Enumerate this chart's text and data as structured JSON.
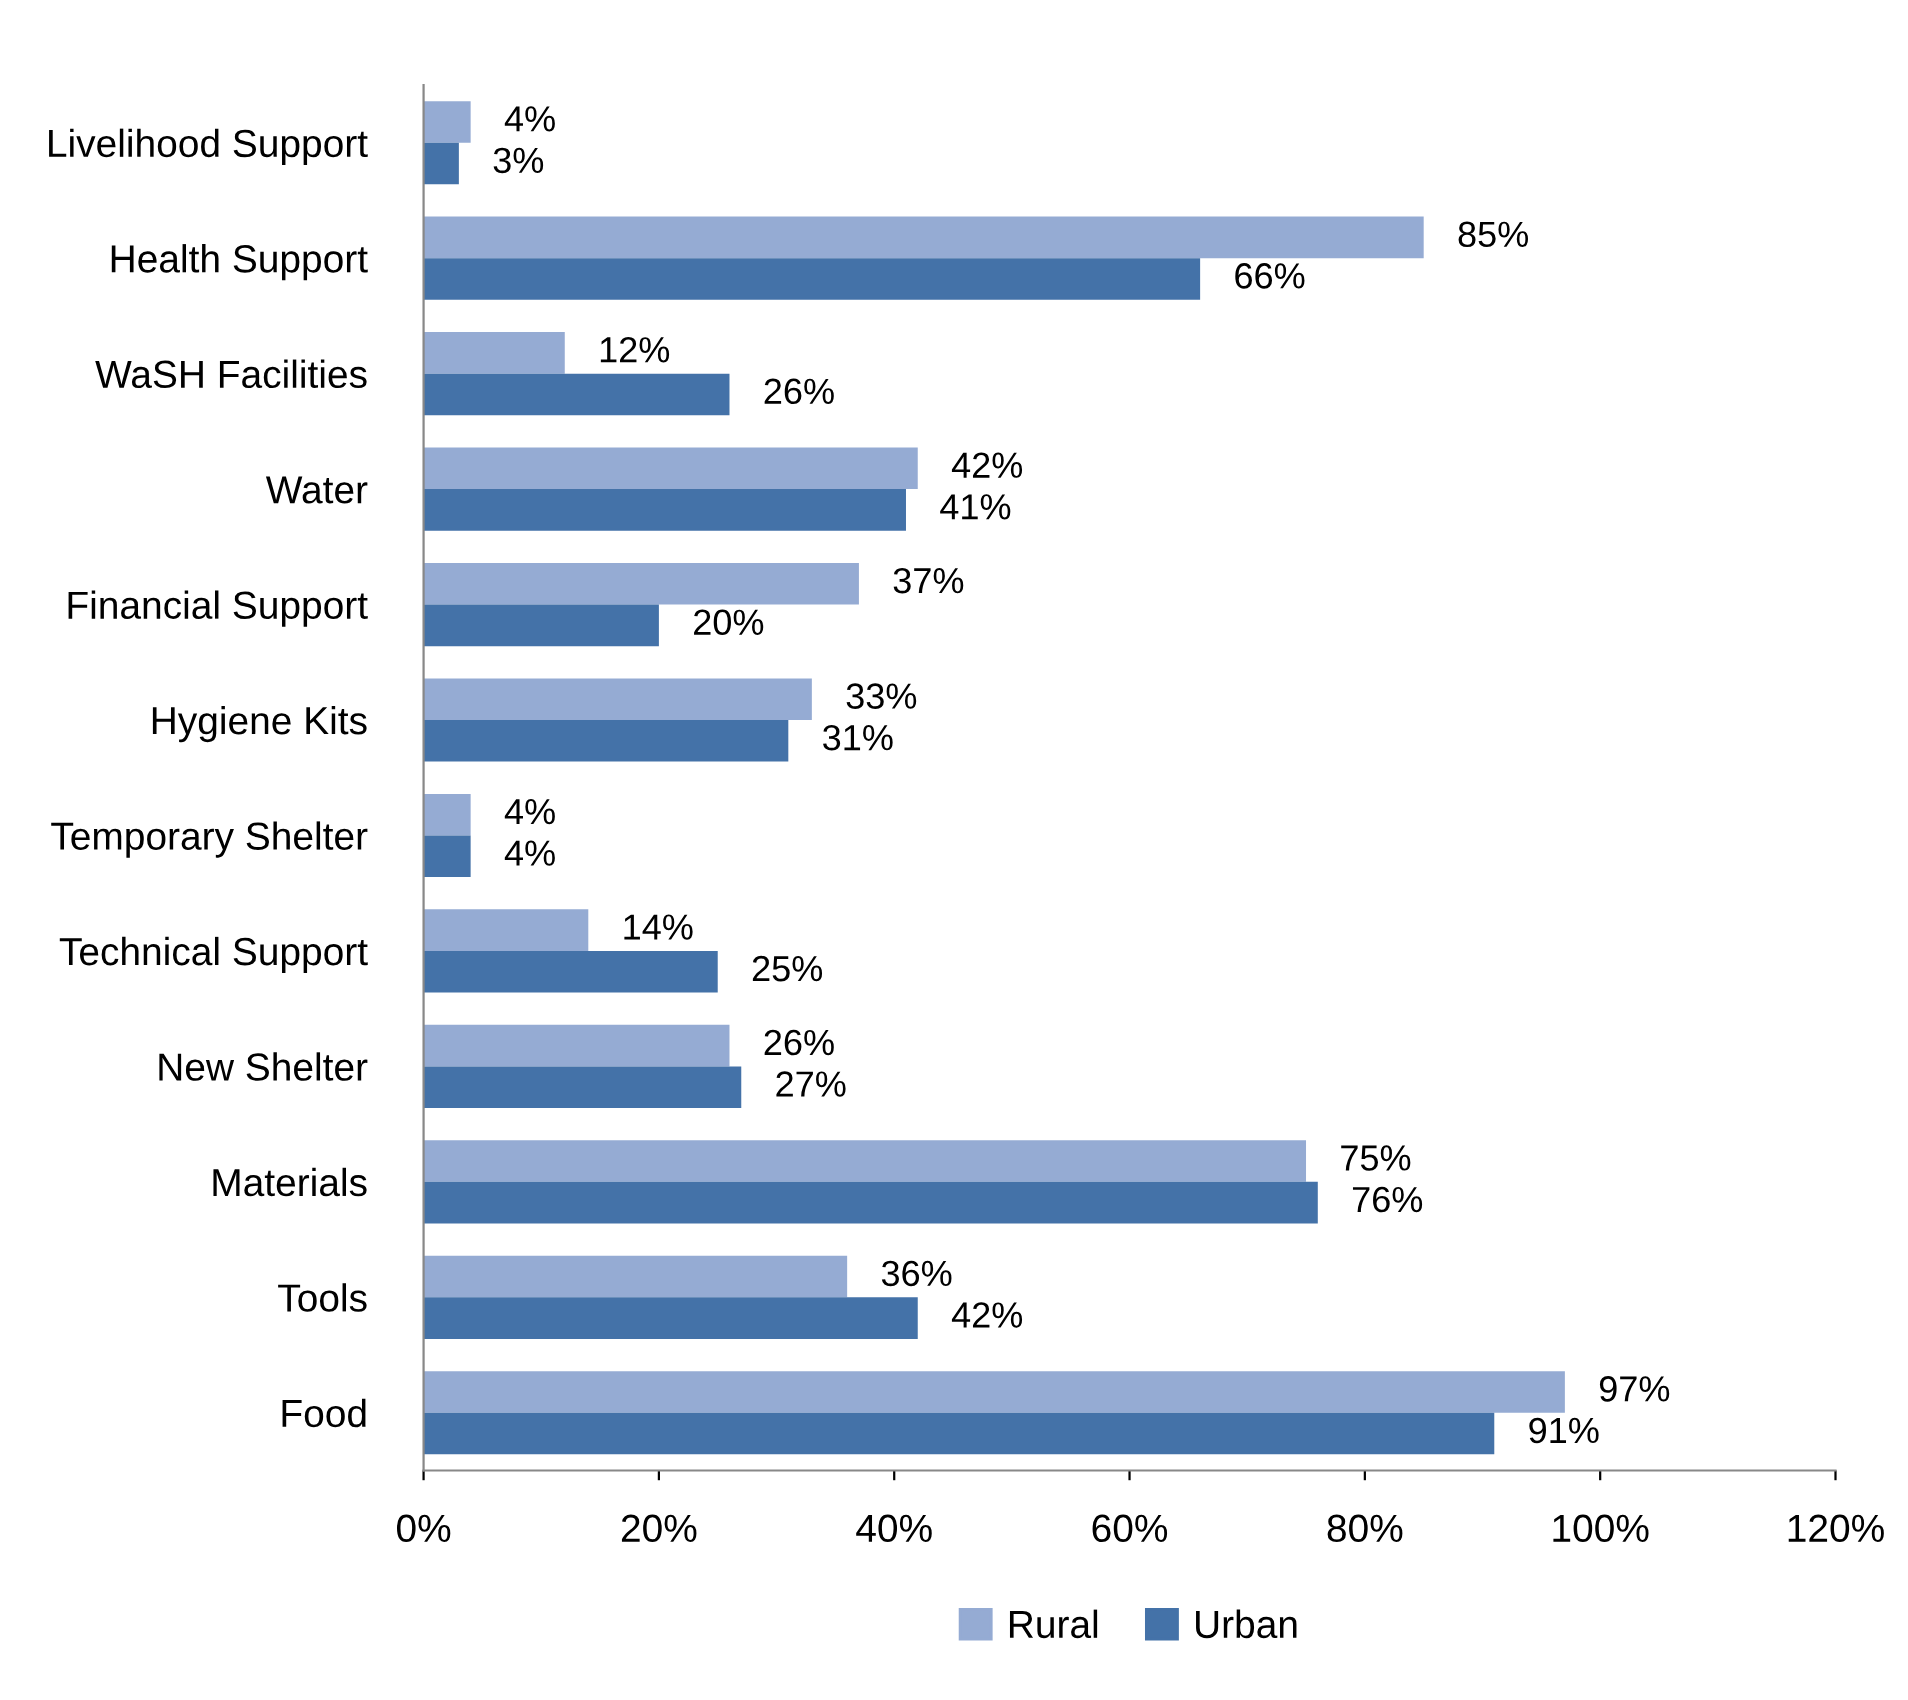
{
  "chart_data": {
    "type": "bar",
    "orientation": "horizontal",
    "categories": [
      "Livelihood Support",
      "Health Support",
      "WaSH Facilities",
      "Water",
      "Financial Support",
      "Hygiene Kits",
      "Temporary Shelter",
      "Technical Support",
      "New Shelter",
      "Materials",
      "Tools",
      "Food"
    ],
    "series": [
      {
        "name": "Rural",
        "color": "#95abd3",
        "values": [
          4,
          85,
          12,
          42,
          37,
          33,
          4,
          14,
          26,
          75,
          36,
          97
        ],
        "value_labels": [
          "4%",
          "85%",
          "12%",
          "42%",
          "37%",
          "33%",
          "4%",
          "14%",
          "26%",
          "75%",
          "36%",
          "97%"
        ]
      },
      {
        "name": "Urban",
        "color": "#4472a8",
        "values": [
          3,
          66,
          26,
          41,
          20,
          31,
          4,
          25,
          27,
          76,
          42,
          91
        ],
        "value_labels": [
          "3%",
          "66%",
          "26%",
          "41%",
          "20%",
          "31%",
          "4%",
          "25%",
          "27%",
          "76%",
          "42%",
          "91%"
        ]
      }
    ],
    "xlim": [
      0,
      120
    ],
    "xticks": [
      {
        "value": 0,
        "label": "0%"
      },
      {
        "value": 20,
        "label": "20%"
      },
      {
        "value": 40,
        "label": "40%"
      },
      {
        "value": 60,
        "label": "60%"
      },
      {
        "value": 80,
        "label": "80%"
      },
      {
        "value": 100,
        "label": "100%"
      },
      {
        "value": 120,
        "label": "120%"
      }
    ],
    "grid": false,
    "legend": "bottom"
  }
}
